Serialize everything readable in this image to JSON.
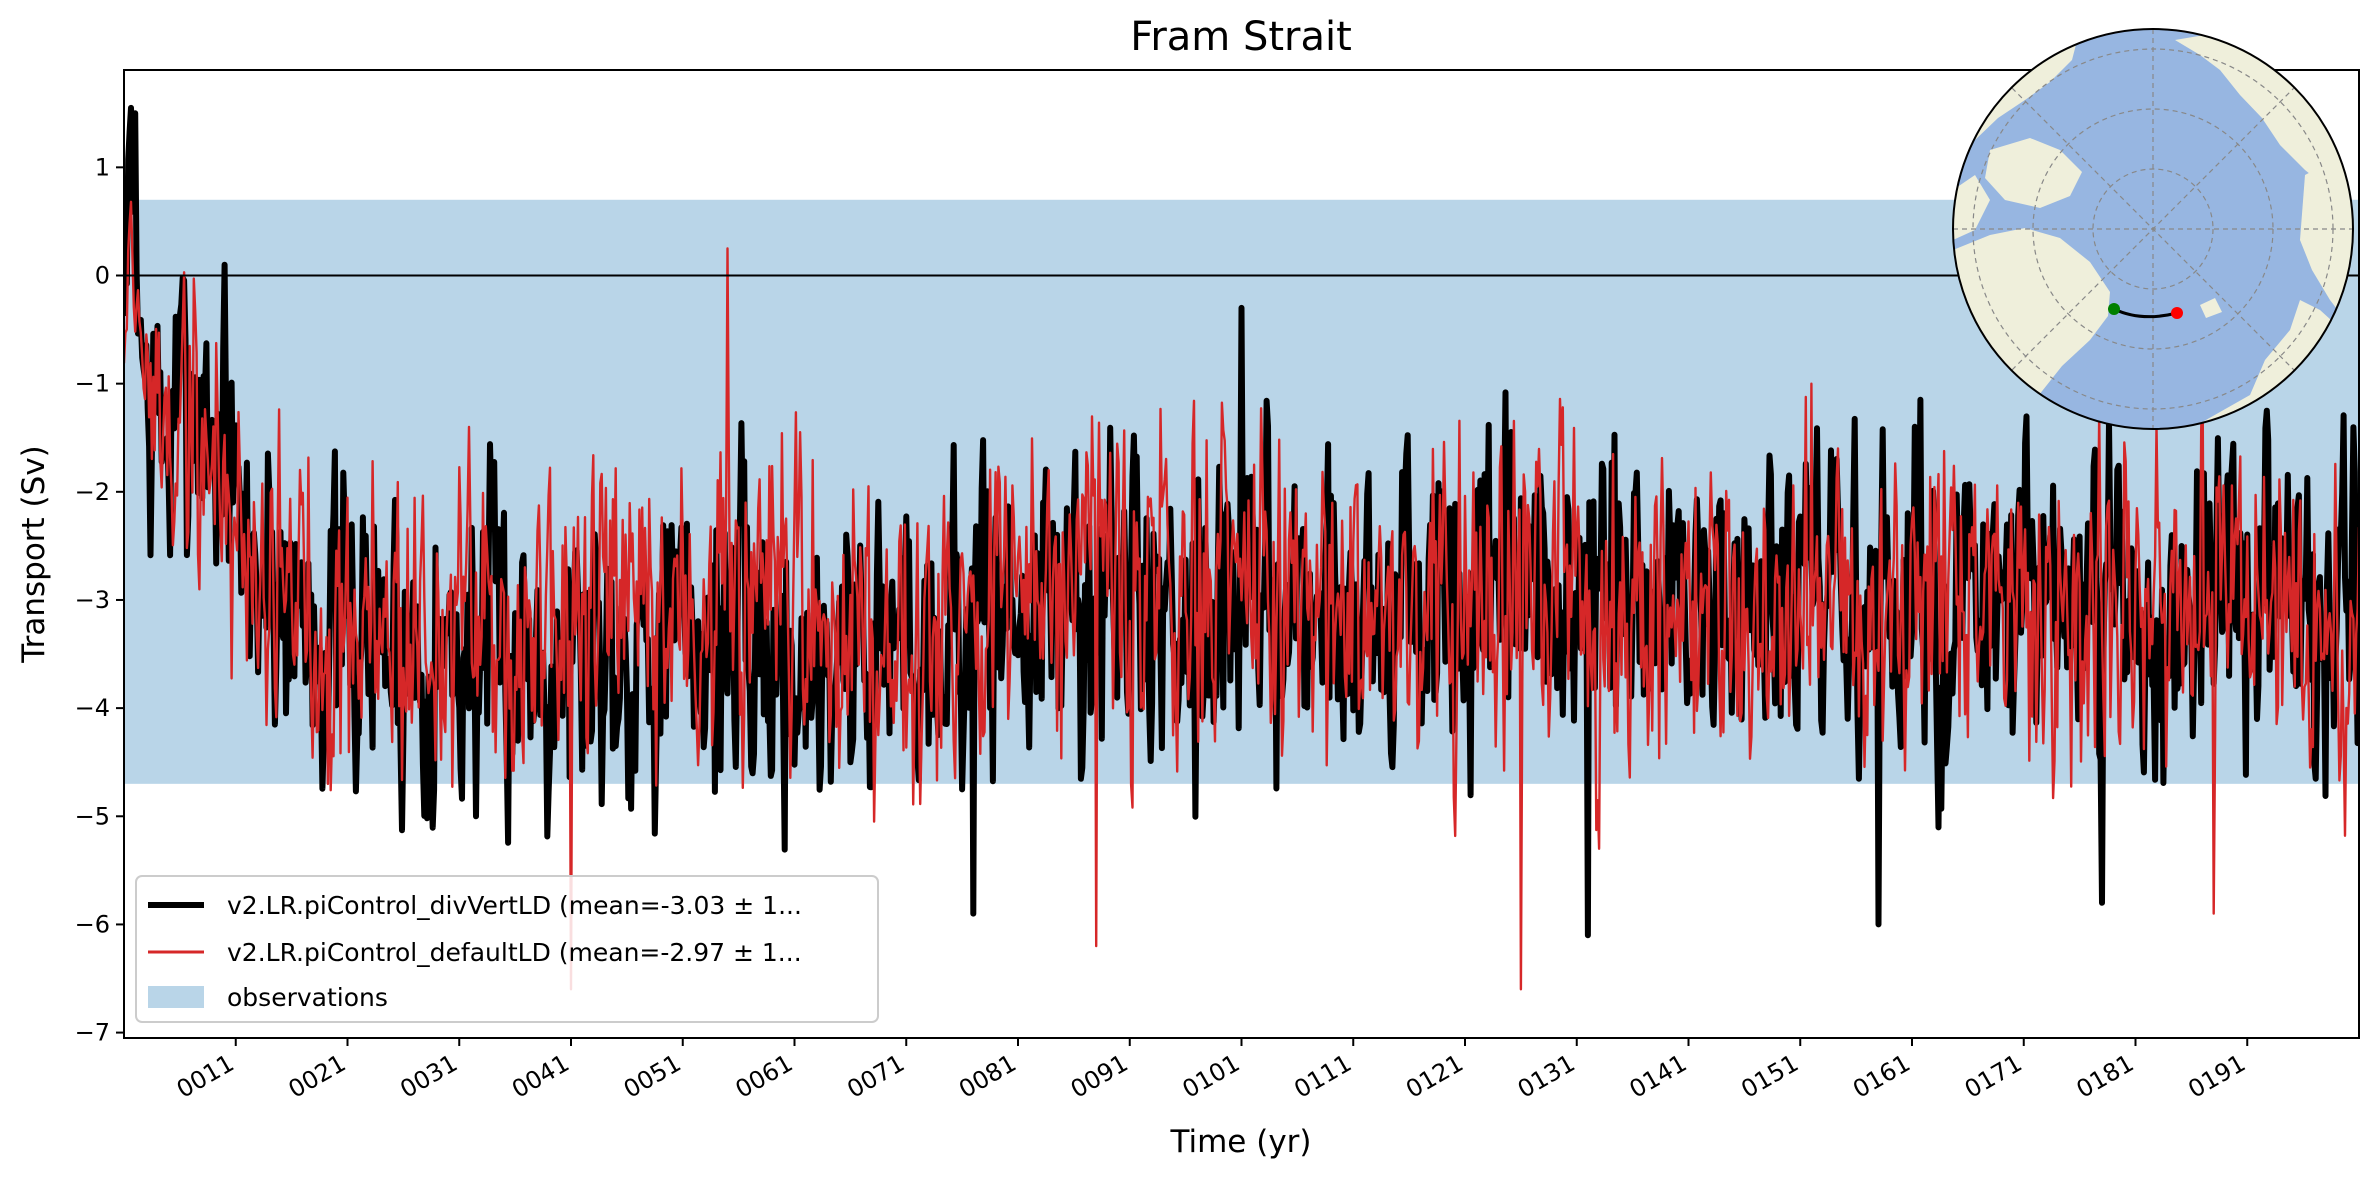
{
  "colors": {
    "obs_band": "#b9d5e8",
    "series1": "#000000",
    "series2": "#d62728",
    "ocean": "#97b6e1",
    "land": "#efefdb"
  },
  "chart_data": {
    "type": "line",
    "title": "Fram Strait",
    "xlabel": "Time (yr)",
    "ylabel": "Transport (Sv)",
    "xlim": [
      1,
      201
    ],
    "ylim": [
      -7.05,
      1.9
    ],
    "x_tick_values": [
      11,
      21,
      31,
      41,
      51,
      61,
      71,
      81,
      91,
      101,
      111,
      121,
      131,
      141,
      151,
      161,
      171,
      181,
      191
    ],
    "x_tick_labels": [
      "0011",
      "0021",
      "0031",
      "0041",
      "0051",
      "0061",
      "0071",
      "0081",
      "0091",
      "0101",
      "0111",
      "0121",
      "0131",
      "0141",
      "0151",
      "0161",
      "0171",
      "0181",
      "0191"
    ],
    "y_tick_values": [
      1,
      0,
      -1,
      -2,
      -3,
      -4,
      -5,
      -6,
      -7
    ],
    "y_tick_labels": [
      "1",
      "0",
      "−1",
      "−2",
      "−3",
      "−4",
      "−5",
      "−6",
      "−7"
    ],
    "zero_line": 0,
    "observations": {
      "label": "observations",
      "range": [
        -4.7,
        0.7
      ]
    },
    "series": [
      {
        "name": "v2.LR.piControl_divVertLD (mean=-3.03 ± 1...",
        "mean": -3.03,
        "seed": 7,
        "anchors": [
          [
            1,
            -0.5
          ],
          [
            1.6,
            1.5
          ],
          [
            2,
            0.2
          ],
          [
            3,
            -1.2
          ],
          [
            5,
            -1.6
          ],
          [
            7,
            -0.9
          ],
          [
            9,
            -1.5
          ],
          [
            12,
            -2.6
          ],
          [
            16,
            -3.0
          ],
          [
            20,
            -3.3
          ],
          [
            30,
            -3.5
          ],
          [
            40,
            -3.4
          ],
          [
            55,
            -3.3
          ],
          [
            60,
            -3.6
          ],
          [
            80,
            -3.1
          ],
          [
            100,
            -3.0
          ],
          [
            120,
            -3.1
          ],
          [
            140,
            -3.0
          ],
          [
            160,
            -3.1
          ],
          [
            180,
            -3.2
          ],
          [
            200,
            -3.0
          ],
          [
            201,
            -2.8
          ]
        ],
        "noise_amp": 1.0,
        "points_per_year": 8,
        "peaks": [
          [
            2,
            1.5
          ],
          [
            10,
            0.1
          ],
          [
            101,
            -0.3
          ],
          [
            178,
            -5.8
          ],
          [
            132,
            -6.1
          ],
          [
            158,
            -6.0
          ],
          [
            77,
            -5.9
          ]
        ]
      },
      {
        "name": "v2.LR.piControl_defaultLD (mean=-2.97 ± 1...",
        "mean": -2.97,
        "seed": 19,
        "anchors": [
          [
            1,
            -0.6
          ],
          [
            1.6,
            0.7
          ],
          [
            2,
            -0.3
          ],
          [
            3,
            -1.1
          ],
          [
            5,
            -1.5
          ],
          [
            7,
            -1.3
          ],
          [
            9,
            -1.8
          ],
          [
            12,
            -2.5
          ],
          [
            16,
            -2.9
          ],
          [
            20,
            -3.2
          ],
          [
            30,
            -3.3
          ],
          [
            40,
            -3.3
          ],
          [
            55,
            -3.1
          ],
          [
            60,
            -3.3
          ],
          [
            80,
            -3.0
          ],
          [
            100,
            -2.95
          ],
          [
            120,
            -3.0
          ],
          [
            140,
            -2.95
          ],
          [
            160,
            -3.0
          ],
          [
            180,
            -3.0
          ],
          [
            200,
            -3.0
          ],
          [
            201,
            -2.9
          ]
        ],
        "noise_amp": 1.05,
        "points_per_year": 8,
        "peaks": [
          [
            55,
            0.25
          ],
          [
            126,
            -6.6
          ],
          [
            41,
            -6.6
          ],
          [
            88,
            -6.2
          ],
          [
            152,
            -1.0
          ],
          [
            188,
            -5.9
          ],
          [
            133,
            -5.3
          ]
        ]
      }
    ],
    "legend": {
      "location": "lower-left"
    }
  },
  "map_inset": {
    "description_icon": "north-polar-map-icon",
    "section_start_color": "#008000",
    "section_end_color": "#ff0000"
  }
}
